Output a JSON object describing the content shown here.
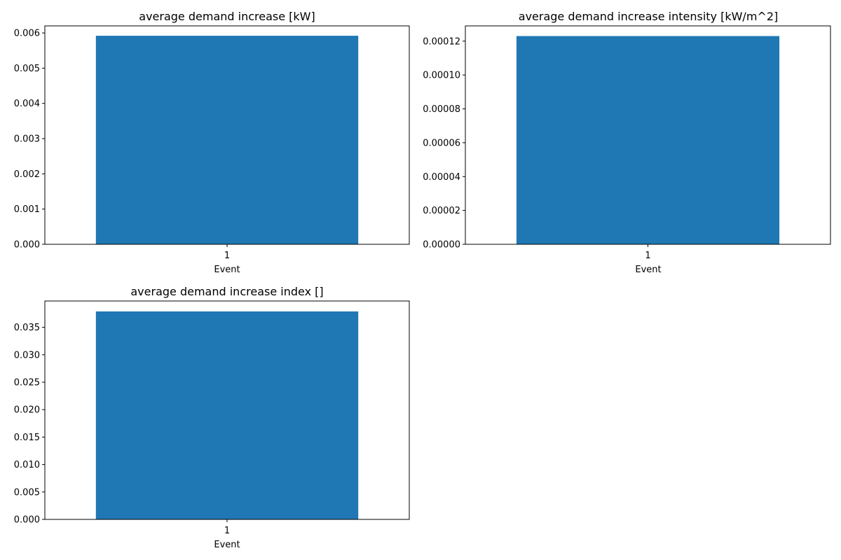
{
  "chart_data": [
    {
      "type": "bar",
      "title": "average demand increase [kW]",
      "xlabel": "Event",
      "ylabel": "",
      "categories": [
        "1"
      ],
      "values": [
        0.00592
      ],
      "ylim": [
        0,
        0.0062
      ],
      "yticks": [
        "0.000",
        "0.001",
        "0.002",
        "0.003",
        "0.004",
        "0.005",
        "0.006"
      ],
      "ytick_values": [
        0,
        0.001,
        0.002,
        0.003,
        0.004,
        0.005,
        0.006
      ],
      "bar_color": "#1f77b4",
      "grid": false
    },
    {
      "type": "bar",
      "title": "average demand increase intensity [kW/m^2]",
      "xlabel": "Event",
      "ylabel": "",
      "categories": [
        "1"
      ],
      "values": [
        0.000123
      ],
      "ylim": [
        0,
        0.000129
      ],
      "yticks": [
        "0.00000",
        "0.00002",
        "0.00004",
        "0.00006",
        "0.00008",
        "0.00010",
        "0.00012"
      ],
      "ytick_values": [
        0,
        2e-05,
        4e-05,
        6e-05,
        8e-05,
        0.0001,
        0.00012
      ],
      "bar_color": "#1f77b4",
      "grid": false
    },
    {
      "type": "bar",
      "title": "average demand increase index []",
      "xlabel": "Event",
      "ylabel": "",
      "categories": [
        "1"
      ],
      "values": [
        0.0379
      ],
      "ylim": [
        0,
        0.0398
      ],
      "yticks": [
        "0.000",
        "0.005",
        "0.010",
        "0.015",
        "0.020",
        "0.025",
        "0.030",
        "0.035"
      ],
      "ytick_values": [
        0,
        0.005,
        0.01,
        0.015,
        0.02,
        0.025,
        0.03,
        0.035
      ],
      "bar_color": "#1f77b4",
      "grid": false
    }
  ]
}
